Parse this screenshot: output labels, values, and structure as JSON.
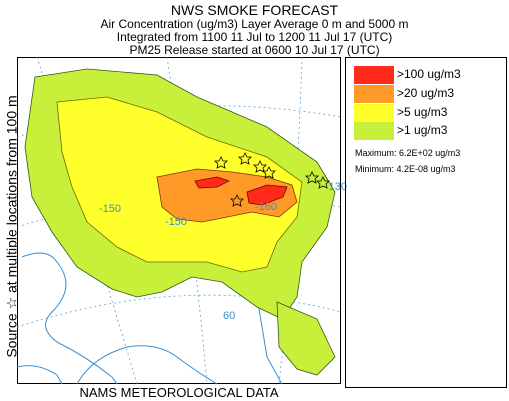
{
  "title": "NWS SMOKE FORECAST",
  "subtitle_line1": "Air Concentration (ug/m3) Layer Average    0 m and  5000 m",
  "subtitle_line2": "Integrated from 1100 11 Jul to 1200 11 Jul 17 (UTC)",
  "subtitle_line3": "PM25 Release started at 0600 10 Jul 17 (UTC)",
  "y_label": "Source ☆  at multiple locations  from   100 m",
  "footer": "NAMS METEOROLOGICAL DATA",
  "legend": {
    "items": [
      {
        "label": ">100 ug/m3",
        "color": "#ff2a1a"
      },
      {
        "label": ">20 ug/m3",
        "color": "#ff9a28"
      },
      {
        "label": ">5 ug/m3",
        "color": "#ffff2c"
      },
      {
        "label": ">1 ug/m3",
        "color": "#c8f03a"
      }
    ],
    "maximum": "Maximum: 6.2E+02 ug/m3",
    "minimum": "Minimum: 4.2E-08 ug/m3"
  },
  "map": {
    "grid_labels": [
      "-150",
      "-150",
      "-130",
      "-160",
      "60"
    ],
    "colors": {
      "coast": "#3a8fd0",
      "grid": "#5aa6d8",
      "source_marker": "#000000"
    }
  }
}
